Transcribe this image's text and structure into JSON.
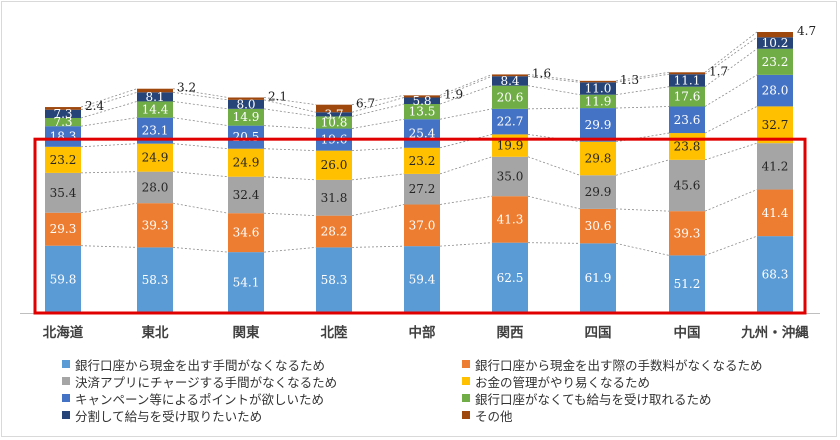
{
  "chart_data": {
    "type": "bar",
    "stacked": true,
    "categories": [
      "北海道",
      "東北",
      "関東",
      "北陸",
      "中部",
      "関西",
      "四国",
      "中国",
      "九州・沖縄"
    ],
    "series": [
      {
        "name": "銀行口座から現金を出す手間がなくなるため",
        "color": "#5b9bd5",
        "values": [
          59.8,
          58.3,
          54.1,
          58.3,
          59.4,
          62.5,
          61.9,
          51.2,
          68.3
        ]
      },
      {
        "name": "銀行口座から現金を出す際の手数料がなくなるため",
        "color": "#ed7d31",
        "values": [
          29.3,
          39.3,
          34.6,
          28.2,
          37.0,
          41.3,
          30.6,
          39.3,
          41.4
        ]
      },
      {
        "name": "決済アプリにチャージする手間がなくなるため",
        "color": "#a5a5a5",
        "values": [
          35.4,
          28.0,
          32.4,
          31.8,
          27.2,
          35.0,
          29.9,
          45.6,
          41.2
        ]
      },
      {
        "name": "お金の管理がやり易くなるため",
        "color": "#ffc000",
        "values": [
          23.2,
          24.9,
          24.9,
          26.0,
          23.2,
          19.9,
          29.8,
          23.8,
          32.7
        ]
      },
      {
        "name": "キャンペーン等によるポイントが欲しいため",
        "color": "#4472c4",
        "values": [
          18.3,
          23.1,
          20.5,
          19.6,
          25.4,
          22.7,
          29.9,
          23.6,
          28.0
        ]
      },
      {
        "name": "銀行口座がなくても給与を受け取れるため",
        "color": "#70ad47",
        "values": [
          7.3,
          14.4,
          14.9,
          10.8,
          13.5,
          20.6,
          11.9,
          17.6,
          23.2
        ]
      },
      {
        "name": "分割して給与を受け取りたいため",
        "color": "#264478",
        "values": [
          7.3,
          8.1,
          8.0,
          3.7,
          5.8,
          8.4,
          11.0,
          11.1,
          10.2
        ]
      },
      {
        "name": "その他",
        "color": "#9e480e",
        "values": [
          2.4,
          3.2,
          2.1,
          6.7,
          1.9,
          1.6,
          1.3,
          1.7,
          4.7
        ]
      }
    ],
    "legend_position": "bottom",
    "highlight_color": "#e00000",
    "highlight_series": [
      0,
      1,
      2
    ]
  }
}
